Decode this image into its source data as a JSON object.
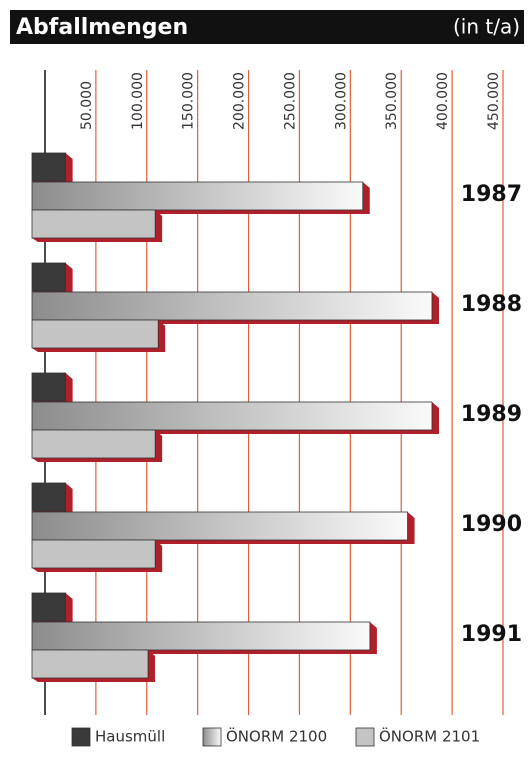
{
  "chart_data": {
    "type": "bar",
    "orientation": "horizontal",
    "title": "Abfallmengen",
    "subtitle": "(in t/a)",
    "categories": [
      "1987",
      "1988",
      "1989",
      "1990",
      "1991"
    ],
    "series": [
      {
        "name": "Hausmüll",
        "color": "#3a3a3a",
        "values": [
          33000,
          33000,
          33000,
          33000,
          33000
        ]
      },
      {
        "name": "ÖNORM 2100",
        "color": "#8c8c8c",
        "values": [
          325000,
          393000,
          393000,
          369000,
          332000
        ]
      },
      {
        "name": "ÖNORM 2101",
        "color": "#c4c4c4",
        "values": [
          121000,
          124000,
          121000,
          121000,
          114000
        ]
      }
    ],
    "xlim": [
      0,
      450000
    ],
    "xticks": [
      {
        "value": 50000,
        "label": "50.000"
      },
      {
        "value": 100000,
        "label": "100.000"
      },
      {
        "value": 150000,
        "label": "150.000"
      },
      {
        "value": 200000,
        "label": "200.000"
      },
      {
        "value": 250000,
        "label": "250.000"
      },
      {
        "value": 300000,
        "label": "300.000"
      },
      {
        "value": 350000,
        "label": "350.000"
      },
      {
        "value": 400000,
        "label": "400.000"
      },
      {
        "value": 450000,
        "label": "450.000"
      }
    ],
    "grid": true,
    "grid_color": "#e0603a",
    "legend": "bottom"
  }
}
